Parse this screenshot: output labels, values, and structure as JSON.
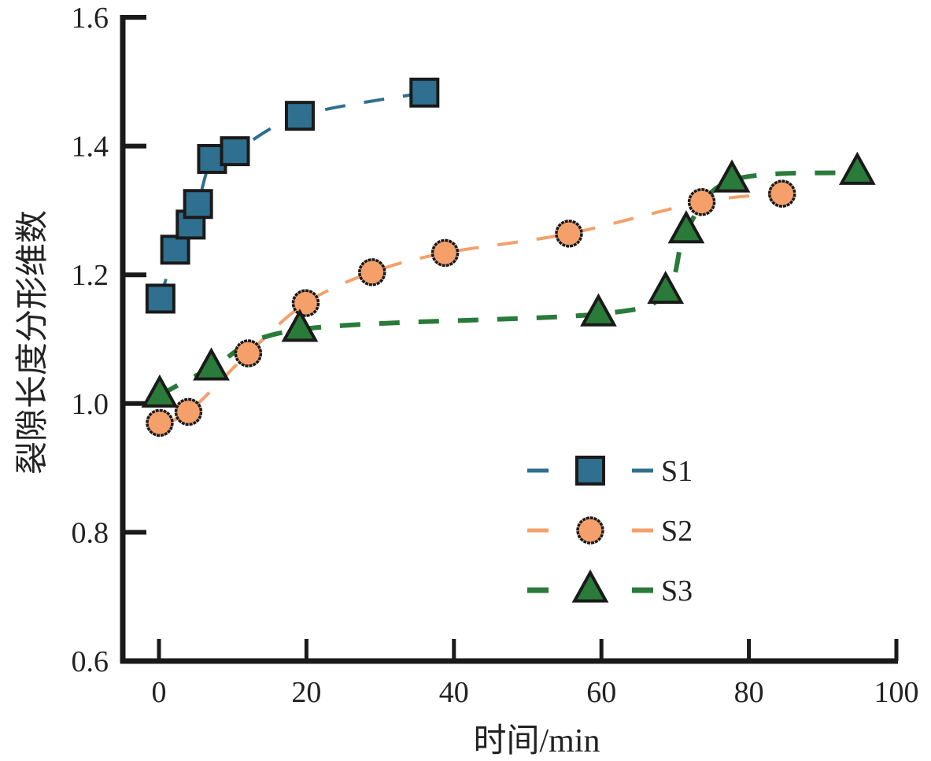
{
  "chart_data": {
    "type": "scatter",
    "title": "",
    "xlabel": "时间/min",
    "ylabel": "裂隙长度分形维数",
    "xlim": [
      -4,
      100
    ],
    "ylim": [
      0.6,
      1.6
    ],
    "xticks": [
      0,
      20,
      40,
      60,
      80,
      100
    ],
    "xtick_labels": [
      "0",
      "20",
      "40",
      "60",
      "80",
      "100"
    ],
    "yticks": [
      0.6,
      0.8,
      1.0,
      1.2,
      1.4,
      1.6
    ],
    "ytick_labels": [
      "0.6",
      "0.8",
      "1.0",
      "1.2",
      "1.4",
      "1.6"
    ],
    "grid": false,
    "legend_position": "lower-right",
    "series": [
      {
        "name": "S1",
        "marker": "square",
        "line": "dashed",
        "color": "#2f6f8f",
        "x": [
          0.2,
          2.2,
          4.3,
          5.3,
          7.2,
          10.3,
          19.1,
          36.0
        ],
        "y": [
          1.163,
          1.239,
          1.278,
          1.31,
          1.38,
          1.392,
          1.447,
          1.483
        ]
      },
      {
        "name": "S2",
        "marker": "circle",
        "line": "dashed",
        "color": "#f5a06a",
        "x": [
          0.1,
          4.0,
          12.1,
          19.9,
          28.9,
          38.8,
          55.6,
          73.6,
          84.5
        ],
        "y": [
          0.97,
          0.987,
          1.078,
          1.156,
          1.204,
          1.234,
          1.264,
          1.313,
          1.326
        ]
      },
      {
        "name": "S3",
        "marker": "triangle",
        "line": "dashed",
        "color": "#2a7a3a",
        "x": [
          0.1,
          7.1,
          19.1,
          59.6,
          68.7,
          71.5,
          77.7,
          94.7
        ],
        "y": [
          1.013,
          1.055,
          1.115,
          1.139,
          1.174,
          1.268,
          1.347,
          1.359
        ]
      }
    ]
  }
}
